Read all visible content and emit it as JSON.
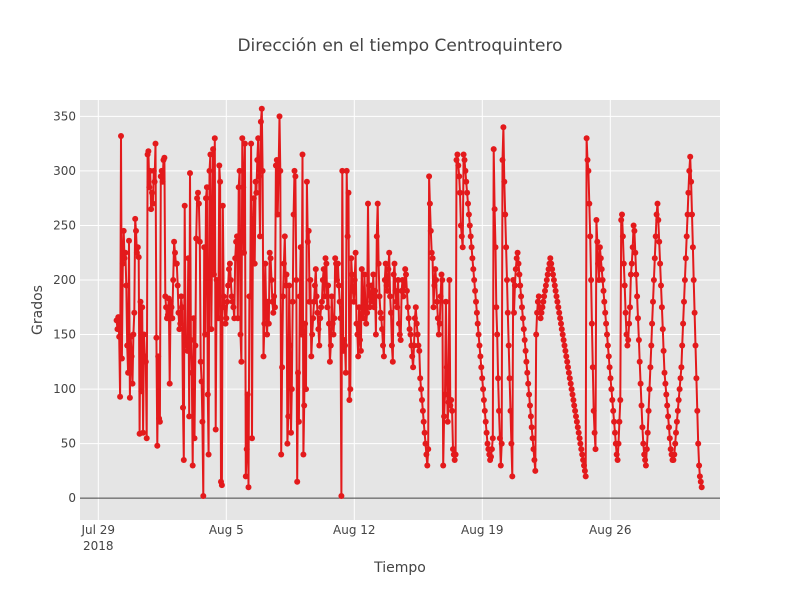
{
  "chart_data": {
    "type": "line",
    "mode": "lines+markers",
    "title": "Dirección en el tiempo Centroquintero",
    "xlabel": "Tiempo",
    "ylabel": "Grados",
    "x_start": "2018-07-30",
    "x_end": "2018-08-31",
    "xlim": [
      "2018-07-28",
      "2018-09-01"
    ],
    "ylim": [
      -20,
      365
    ],
    "yticks": [
      0,
      50,
      100,
      150,
      200,
      250,
      300,
      350
    ],
    "xticks": [
      {
        "date": "2018-07-29",
        "label": "Jul 29",
        "sublabel": "2018"
      },
      {
        "date": "2018-08-05",
        "label": "Aug 5",
        "sublabel": ""
      },
      {
        "date": "2018-08-12",
        "label": "Aug 12",
        "sublabel": ""
      },
      {
        "date": "2018-08-19",
        "label": "Aug 19",
        "sublabel": ""
      },
      {
        "date": "2018-08-26",
        "label": "Aug 26",
        "sublabel": ""
      }
    ],
    "grid": true,
    "zero_line": true,
    "colors": {
      "series": "#e31a1c",
      "plot_bg": "#e5e5e5",
      "grid": "#ffffff",
      "zero_line": "#444444"
    },
    "series": [
      {
        "values": [
          163,
          155,
          166,
          148,
          93,
          332,
          128,
          215,
          245,
          220,
          225,
          195,
          140,
          115,
          236,
          92,
          148,
          130,
          105,
          150,
          170,
          256,
          245,
          225,
          230,
          221,
          59,
          180,
          98,
          175,
          60,
          150,
          130,
          125,
          55,
          315,
          318,
          285,
          300,
          265,
          280,
          270,
          300,
          290,
          325,
          147,
          48,
          130,
          73,
          70,
          295,
          300,
          290,
          310,
          312,
          185,
          175,
          165,
          168,
          183,
          105,
          180,
          175,
          165,
          200,
          235,
          225,
          215,
          215,
          195,
          170,
          155,
          160,
          185,
          175,
          83,
          35,
          268,
          140,
          145,
          135,
          220,
          75,
          298,
          145,
          115,
          30,
          165,
          55,
          140,
          238,
          275,
          280,
          270,
          235,
          125,
          107,
          70,
          2,
          230,
          150,
          275,
          285,
          95,
          40,
          300,
          315,
          155,
          240,
          320,
          205,
          330,
          63,
          200,
          195,
          165,
          305,
          290,
          15,
          12,
          268,
          185,
          175,
          160,
          165,
          180,
          195,
          210,
          215,
          200,
          185,
          180,
          175,
          165,
          220,
          235,
          240,
          165,
          285,
          300,
          150,
          125,
          330,
          285,
          225,
          325,
          20,
          45,
          95,
          10,
          185,
          185,
          325,
          55,
          245,
          275,
          215,
          290,
          280,
          310,
          330,
          295,
          240,
          345,
          357,
          300,
          130,
          160,
          215,
          170,
          150,
          180,
          160,
          225,
          220,
          200,
          180,
          170,
          185,
          175,
          305,
          310,
          260,
          300,
          350,
          300,
          40,
          120,
          185,
          215,
          240,
          195,
          205,
          50,
          75,
          195,
          140,
          60,
          100,
          180,
          260,
          300,
          295,
          200,
          15,
          115,
          70,
          185,
          230,
          150,
          315,
          40,
          85,
          160,
          100,
          290,
          235,
          245,
          180,
          200,
          130,
          150,
          165,
          180,
          195,
          210,
          185,
          170,
          155,
          140,
          165,
          175,
          180,
          200,
          210,
          185,
          220,
          215,
          175,
          195,
          160,
          125,
          140,
          185,
          160,
          150,
          165,
          220,
          215,
          200,
          215,
          195,
          180,
          165,
          2,
          300,
          135,
          145,
          140,
          115,
          300,
          240,
          280,
          90,
          100,
          220,
          205,
          190,
          180,
          200,
          225,
          160,
          150,
          130,
          175,
          145,
          135,
          210,
          170,
          165,
          205,
          180,
          160,
          170,
          270,
          195,
          175,
          185,
          195,
          180,
          205,
          175,
          190,
          150,
          240,
          270,
          215,
          185,
          170,
          165,
          155,
          140,
          130,
          200,
          215,
          195,
          190,
          210,
          225,
          185,
          170,
          140,
          125,
          205,
          215,
          190,
          180,
          175,
          200,
          160,
          150,
          145,
          190,
          200,
          185,
          195,
          210,
          205,
          190,
          175,
          165,
          155,
          150,
          140,
          130,
          120,
          140,
          165,
          175,
          160,
          150,
          140,
          135,
          110,
          100,
          90,
          80,
          70,
          60,
          50,
          40,
          30,
          45,
          295,
          270,
          245,
          225,
          220,
          175,
          195,
          210,
          200,
          180,
          165,
          150,
          160,
          185,
          205,
          200,
          30,
          75,
          95,
          180,
          120,
          70,
          88,
          200,
          85,
          90,
          80,
          45,
          40,
          35,
          40,
          310,
          315,
          305,
          295,
          280,
          250,
          240,
          230,
          315,
          310,
          300,
          290,
          280,
          270,
          260,
          250,
          240,
          230,
          220,
          210,
          200,
          190,
          180,
          170,
          160,
          150,
          140,
          130,
          120,
          110,
          100,
          90,
          80,
          70,
          60,
          50,
          45,
          40,
          35,
          38,
          45,
          55,
          320,
          265,
          230,
          175,
          150,
          110,
          80,
          55,
          30,
          50,
          310,
          340,
          290,
          260,
          230,
          200,
          170,
          140,
          110,
          80,
          50,
          20,
          200,
          170,
          195,
          210,
          220,
          225,
          215,
          205,
          195,
          185,
          175,
          165,
          155,
          145,
          135,
          125,
          115,
          105,
          95,
          85,
          75,
          65,
          55,
          45,
          35,
          25,
          150,
          170,
          180,
          185,
          175,
          165,
          170,
          175,
          180,
          185,
          190,
          195,
          200,
          205,
          210,
          215,
          220,
          215,
          210,
          205,
          200,
          195,
          190,
          185,
          180,
          175,
          170,
          165,
          160,
          155,
          150,
          145,
          140,
          135,
          130,
          125,
          120,
          115,
          110,
          105,
          100,
          95,
          90,
          85,
          80,
          75,
          70,
          65,
          60,
          55,
          50,
          45,
          40,
          35,
          30,
          25,
          20,
          330,
          310,
          300,
          270,
          240,
          200,
          160,
          120,
          80,
          60,
          45,
          255,
          235,
          215,
          200,
          230,
          220,
          210,
          200,
          190,
          180,
          170,
          160,
          150,
          140,
          130,
          120,
          110,
          100,
          90,
          80,
          70,
          60,
          50,
          40,
          35,
          50,
          70,
          90,
          255,
          260,
          240,
          215,
          195,
          170,
          150,
          140,
          145,
          160,
          175,
          205,
          215,
          230,
          250,
          245,
          225,
          205,
          185,
          165,
          145,
          125,
          105,
          85,
          65,
          50,
          40,
          35,
          30,
          45,
          60,
          80,
          100,
          120,
          140,
          160,
          180,
          200,
          220,
          240,
          260,
          270,
          255,
          235,
          215,
          195,
          175,
          155,
          135,
          115,
          105,
          95,
          85,
          75,
          65,
          55,
          45,
          40,
          35,
          35,
          40,
          50,
          60,
          70,
          80,
          90,
          100,
          110,
          120,
          140,
          160,
          180,
          200,
          220,
          240,
          260,
          280,
          300,
          313,
          290,
          260,
          230,
          200,
          170,
          140,
          110,
          80,
          50,
          30,
          20,
          15,
          10
        ]
      }
    ]
  }
}
